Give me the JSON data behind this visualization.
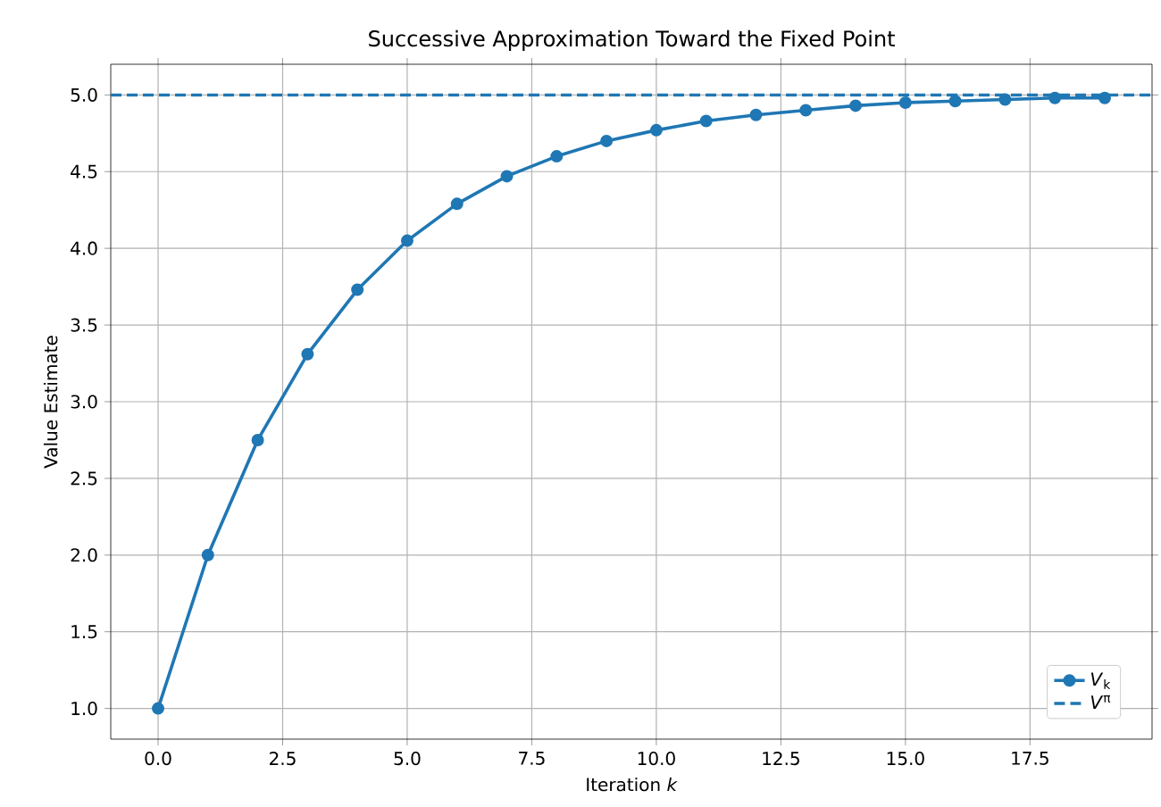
{
  "chart_data": {
    "type": "line",
    "title": "Successive Approximation Toward the Fixed Point",
    "xlabel": "Iteration *k*",
    "ylabel": "Value Estimate",
    "x": [
      0,
      1,
      2,
      3,
      4,
      5,
      6,
      7,
      8,
      9,
      10,
      11,
      12,
      13,
      14,
      15,
      16,
      17,
      18,
      19
    ],
    "series": [
      {
        "name": "*V*$_{k}$",
        "color": "#1f77b4",
        "values": [
          1.0,
          2.0,
          2.75,
          3.31,
          3.73,
          4.05,
          4.29,
          4.47,
          4.6,
          4.7,
          4.77,
          4.83,
          4.87,
          4.9,
          4.93,
          4.95,
          4.96,
          4.97,
          4.98,
          4.98
        ]
      }
    ],
    "marker": "circle",
    "line_style": "solid",
    "grid": true,
    "legend": "bottom right",
    "ref_lines": [
      {
        "axis": "y",
        "value": 5.0,
        "label": "*V*$^{π}$",
        "color": "#1f77b4",
        "line_style": "dashed"
      }
    ],
    "xlim": [
      -0.95,
      19.95
    ],
    "ylim": [
      0.8,
      5.2
    ],
    "xticks": [
      {
        "value": 0,
        "label": "0.0"
      },
      {
        "value": 2.5,
        "label": "2.5"
      },
      {
        "value": 5,
        "label": "5.0"
      },
      {
        "value": 7.5,
        "label": "7.5"
      },
      {
        "value": 10,
        "label": "10.0"
      },
      {
        "value": 12.5,
        "label": "12.5"
      },
      {
        "value": 15,
        "label": "15.0"
      },
      {
        "value": 17.5,
        "label": "17.5"
      }
    ],
    "yticks": [
      {
        "value": 1,
        "label": "1.0"
      },
      {
        "value": 1.5,
        "label": "1.5"
      },
      {
        "value": 2,
        "label": "2.0"
      },
      {
        "value": 2.5,
        "label": "2.5"
      },
      {
        "value": 3,
        "label": "3.0"
      },
      {
        "value": 3.5,
        "label": "3.5"
      },
      {
        "value": 4,
        "label": "4.0"
      },
      {
        "value": 4.5,
        "label": "4.5"
      },
      {
        "value": 5,
        "label": "5.0"
      }
    ]
  }
}
